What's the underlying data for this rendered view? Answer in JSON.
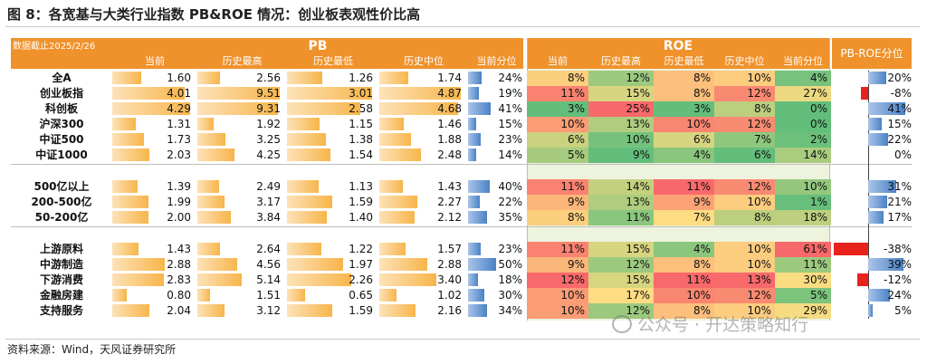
{
  "title": "图 8：各宽基与大类行业指数 PB&ROE 情况：创业板表观性价比高",
  "source": "资料来源：Wind，天风证券研究所",
  "watermark": "公众号 · 开达策略知行",
  "colors": {
    "header": "#f0922b",
    "bar_orange": "#f7b54a",
    "bar_blue": "#4a82c6",
    "bar_red": "#e8231e",
    "roe_bg": "#eef3dd"
  },
  "chart_data": {
    "type": "table",
    "date_label": "数据截止2025/2/26",
    "groups": [
      "PB",
      "ROE",
      "PB-ROE分位"
    ],
    "pb_columns": [
      "当前",
      "历史最高",
      "历史最低",
      "历史中位",
      "当前分位"
    ],
    "roe_columns": [
      "当前",
      "历史最高",
      "历史最低",
      "历史中位",
      "当前分位"
    ],
    "rows": [
      {
        "name": "全A",
        "pb": [
          "1.60",
          "2.56",
          "1.26",
          "1.74",
          "24%"
        ],
        "pb_pct": 24,
        "roe": [
          "8%",
          "12%",
          "8%",
          "10%",
          "4%"
        ],
        "roe_vals": [
          8,
          12,
          8,
          10,
          4
        ],
        "pr": "20%",
        "pr_val": 20
      },
      {
        "name": "创业板指",
        "pb": [
          "4.01",
          "9.51",
          "3.01",
          "4.87",
          "19%"
        ],
        "pb_pct": 19,
        "roe": [
          "11%",
          "15%",
          "8%",
          "12%",
          "27%"
        ],
        "roe_vals": [
          11,
          15,
          8,
          12,
          27
        ],
        "pr": "-8%",
        "pr_val": -8
      },
      {
        "name": "科创板",
        "pb": [
          "4.29",
          "9.31",
          "2.58",
          "4.68",
          "41%"
        ],
        "pb_pct": 41,
        "roe": [
          "3%",
          "25%",
          "3%",
          "8%",
          "0%"
        ],
        "roe_vals": [
          3,
          25,
          3,
          8,
          0
        ],
        "pr": "41%",
        "pr_val": 41
      },
      {
        "name": "沪深300",
        "pb": [
          "1.31",
          "1.92",
          "1.15",
          "1.46",
          "15%"
        ],
        "pb_pct": 15,
        "roe": [
          "10%",
          "13%",
          "10%",
          "12%",
          "0%"
        ],
        "roe_vals": [
          10,
          13,
          10,
          12,
          0
        ],
        "pr": "15%",
        "pr_val": 15
      },
      {
        "name": "中证500",
        "pb": [
          "1.73",
          "3.25",
          "1.38",
          "1.88",
          "23%"
        ],
        "pb_pct": 23,
        "roe": [
          "6%",
          "10%",
          "6%",
          "7%",
          "2%"
        ],
        "roe_vals": [
          6,
          10,
          6,
          7,
          2
        ],
        "pr": "22%",
        "pr_val": 22
      },
      {
        "name": "中证1000",
        "pb": [
          "2.03",
          "4.25",
          "1.54",
          "2.48",
          "14%"
        ],
        "pb_pct": 14,
        "roe": [
          "5%",
          "9%",
          "4%",
          "6%",
          "14%"
        ],
        "roe_vals": [
          5,
          9,
          4,
          6,
          14
        ],
        "pr": "0%",
        "pr_val": 0
      },
      {
        "name": "500亿以上",
        "pb": [
          "1.39",
          "2.49",
          "1.13",
          "1.43",
          "40%"
        ],
        "pb_pct": 40,
        "roe": [
          "11%",
          "14%",
          "11%",
          "12%",
          "10%"
        ],
        "roe_vals": [
          11,
          14,
          11,
          12,
          10
        ],
        "pr": "31%",
        "pr_val": 31
      },
      {
        "name": "200-500亿",
        "pb": [
          "1.99",
          "3.17",
          "1.59",
          "2.27",
          "22%"
        ],
        "pb_pct": 22,
        "roe": [
          "9%",
          "13%",
          "9%",
          "10%",
          "1%"
        ],
        "roe_vals": [
          9,
          13,
          9,
          10,
          1
        ],
        "pr": "21%",
        "pr_val": 21
      },
      {
        "name": "50-200亿",
        "pb": [
          "2.00",
          "3.84",
          "1.40",
          "2.12",
          "35%"
        ],
        "pb_pct": 35,
        "roe": [
          "8%",
          "11%",
          "7%",
          "8%",
          "18%"
        ],
        "roe_vals": [
          8,
          11,
          7,
          8,
          18
        ],
        "pr": "17%",
        "pr_val": 17
      },
      {
        "name": "上游原料",
        "pb": [
          "1.43",
          "2.64",
          "1.22",
          "1.57",
          "23%"
        ],
        "pb_pct": 23,
        "roe": [
          "11%",
          "15%",
          "4%",
          "10%",
          "61%"
        ],
        "roe_vals": [
          11,
          15,
          4,
          10,
          61
        ],
        "pr": "-38%",
        "pr_val": -38
      },
      {
        "name": "中游制造",
        "pb": [
          "2.88",
          "4.56",
          "1.97",
          "2.88",
          "50%"
        ],
        "pb_pct": 50,
        "roe": [
          "9%",
          "12%",
          "8%",
          "10%",
          "11%"
        ],
        "roe_vals": [
          9,
          12,
          8,
          10,
          11
        ],
        "pr": "39%",
        "pr_val": 39
      },
      {
        "name": "下游消费",
        "pb": [
          "2.83",
          "5.14",
          "2.26",
          "3.40",
          "18%"
        ],
        "pb_pct": 18,
        "roe": [
          "12%",
          "15%",
          "11%",
          "13%",
          "30%"
        ],
        "roe_vals": [
          12,
          15,
          11,
          13,
          30
        ],
        "pr": "-12%",
        "pr_val": -12
      },
      {
        "name": "金融房建",
        "pb": [
          "0.80",
          "1.51",
          "0.65",
          "1.02",
          "30%"
        ],
        "pb_pct": 30,
        "roe": [
          "10%",
          "17%",
          "10%",
          "12%",
          "5%"
        ],
        "roe_vals": [
          10,
          17,
          10,
          12,
          5
        ],
        "pr": "24%",
        "pr_val": 24
      },
      {
        "name": "支持服务",
        "pb": [
          "2.04",
          "3.12",
          "1.59",
          "2.16",
          "34%"
        ],
        "pb_pct": 34,
        "roe": [
          "10%",
          "12%",
          "8%",
          "10%",
          "29%"
        ],
        "roe_vals": [
          10,
          12,
          8,
          10,
          29
        ],
        "pr": "5%",
        "pr_val": 5
      }
    ]
  }
}
